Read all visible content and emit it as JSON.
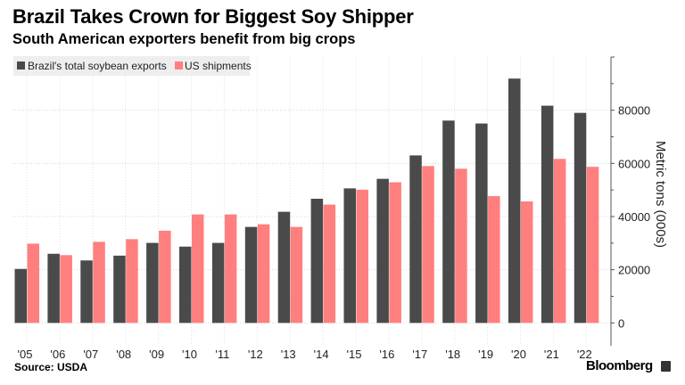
{
  "chart_data": {
    "type": "bar",
    "title": "Brazil Takes Crown for Biggest Soy Shipper",
    "subtitle": "South American exporters benefit from big crops",
    "categories": [
      "'05",
      "'06",
      "'07",
      "'08",
      "'09",
      "'10",
      "'11",
      "'12",
      "'13",
      "'14",
      "'15",
      "'16",
      "'17",
      "'18",
      "'19",
      "'20",
      "'21",
      "'22"
    ],
    "series": [
      {
        "name": "Brazil's total soybean exports",
        "color": "#4a4a4a",
        "values": [
          20300,
          26000,
          23500,
          25300,
          30100,
          28700,
          30100,
          36100,
          41800,
          46700,
          50600,
          54200,
          63000,
          76100,
          75000,
          91900,
          81700,
          79000
        ]
      },
      {
        "name": "US shipments",
        "color": "#ff7f7f",
        "values": [
          29800,
          25500,
          30500,
          31500,
          34700,
          40800,
          40800,
          37100,
          36100,
          44500,
          50100,
          52900,
          59000,
          58000,
          47700,
          45700,
          61700,
          58700
        ]
      }
    ],
    "xlabel": "",
    "ylabel": "Metric tons (000s)",
    "ylim": [
      -8600,
      100000
    ],
    "yticks": [
      "0",
      "20000",
      "40000",
      "60000",
      "80000"
    ],
    "ytick_values": [
      0,
      20000,
      40000,
      60000,
      80000
    ],
    "y_axis_side": "right",
    "grid": true,
    "legend": "top-left",
    "source": "Source: USDA",
    "brand": "Bloomberg"
  }
}
